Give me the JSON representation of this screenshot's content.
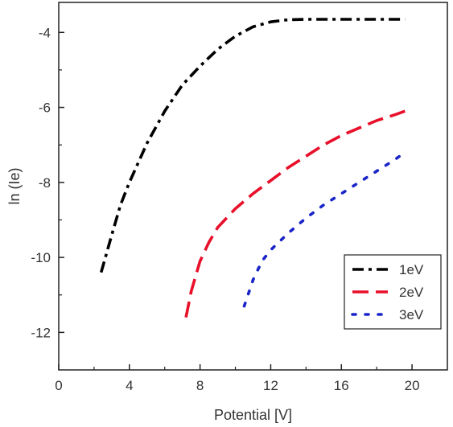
{
  "chart_data": {
    "type": "line",
    "title": "",
    "xlabel": "Potential [V]",
    "ylabel": "ln (Ie)",
    "xlim": [
      0,
      22
    ],
    "ylim": [
      -13,
      -3.2
    ],
    "x_ticks": [
      0,
      4,
      8,
      12,
      16,
      20
    ],
    "y_ticks": [
      -12,
      -10,
      -8,
      -6,
      -4
    ],
    "x_tick_labels": [
      "0",
      "4",
      "8",
      "12",
      "16",
      "20"
    ],
    "y_tick_labels": [
      "-12",
      "-10",
      "-8",
      "-6",
      "-4"
    ],
    "grid": false,
    "legend_position": "bottom-right",
    "series": [
      {
        "name": "1eV",
        "color": "#000000",
        "style": "dash-dot",
        "x": [
          2.4,
          3,
          3.5,
          4,
          5,
          6,
          7,
          8,
          9,
          10,
          11,
          12,
          13,
          14,
          16,
          18,
          19.6
        ],
        "y": [
          -10.4,
          -9.4,
          -8.6,
          -8.0,
          -6.95,
          -6.1,
          -5.4,
          -4.9,
          -4.45,
          -4.1,
          -3.85,
          -3.72,
          -3.66,
          -3.65,
          -3.65,
          -3.65,
          -3.65
        ]
      },
      {
        "name": "2eV",
        "color": "#e8102a",
        "style": "dashed",
        "x": [
          7.2,
          7.5,
          8,
          8.5,
          9,
          10,
          11,
          12,
          13,
          14,
          15,
          16,
          17,
          18,
          19,
          19.6
        ],
        "y": [
          -11.6,
          -10.9,
          -10.1,
          -9.6,
          -9.2,
          -8.7,
          -8.3,
          -7.95,
          -7.6,
          -7.3,
          -7.0,
          -6.75,
          -6.55,
          -6.35,
          -6.2,
          -6.1
        ]
      },
      {
        "name": "3eV",
        "color": "#1a25c8",
        "style": "dotted",
        "x": [
          10.5,
          11,
          11.5,
          12,
          13,
          14,
          15,
          16,
          17,
          18,
          19,
          19.6
        ],
        "y": [
          -11.3,
          -10.6,
          -10.1,
          -9.8,
          -9.35,
          -8.95,
          -8.6,
          -8.3,
          -8.0,
          -7.7,
          -7.4,
          -7.2
        ]
      }
    ]
  }
}
